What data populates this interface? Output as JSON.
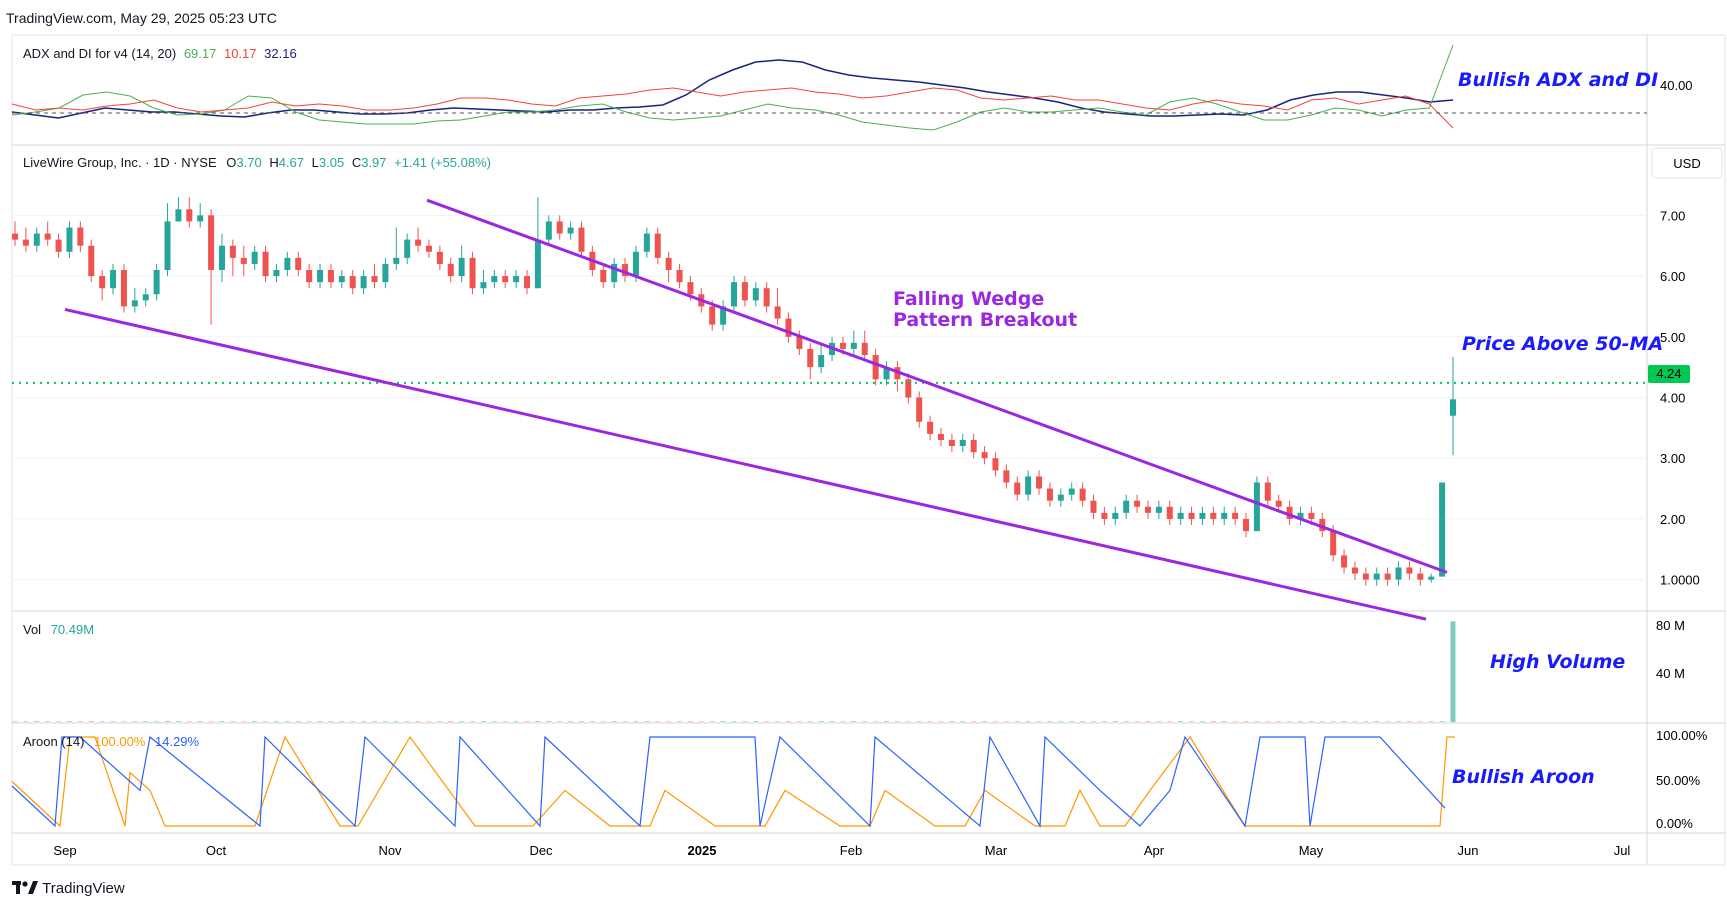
{
  "header": {
    "site": "TradingView.com, May 29, 2025 05:23 UTC",
    "footer_logo": "TradingView"
  },
  "adx_panel": {
    "title": "ADX and DI for v4 (14, 20)",
    "v1": "69.17",
    "v2": "10.17",
    "v3": "32.16",
    "axis": [
      "40.00"
    ],
    "annotation": "Bullish ADX and DI"
  },
  "price_panel": {
    "symbol": "LiveWire Group, Inc. · 1D · NYSE",
    "o_label": "O",
    "o": "3.70",
    "h_label": "H",
    "h": "4.67",
    "l_label": "L",
    "l": "3.05",
    "c_label": "C",
    "c": "3.97",
    "change": "+1.41 (+55.08%)",
    "currency": "USD",
    "last_price": "4.24",
    "axis": [
      "7.00",
      "6.00",
      "5.00",
      "4.00",
      "3.00",
      "2.00",
      "1.0000"
    ],
    "annotation_wedge_1": "Falling Wedge",
    "annotation_wedge_2": "Pattern Breakout",
    "annotation_ma": "Price Above 50-MA"
  },
  "volume_panel": {
    "label": "Vol",
    "value": "70.49M",
    "axis": [
      "80 M",
      "40 M"
    ],
    "annotation": "High Volume"
  },
  "aroon_panel": {
    "label": "Aroon (14)",
    "up": "100.00%",
    "down": "14.29%",
    "axis": [
      "100.00%",
      "50.00%",
      "0.00%"
    ],
    "annotation": "Bullish Aroon"
  },
  "time_axis": [
    "Sep",
    "Oct",
    "Nov",
    "Dec",
    "2025",
    "Feb",
    "Mar",
    "Apr",
    "May",
    "Jun",
    "Jul"
  ],
  "colors": {
    "up": "#26a69a",
    "down": "#ef5350",
    "wedge": "#9c27e0",
    "ma": "#00c853",
    "annotation": "#1a1aff",
    "adx": "#1a237e",
    "di_plus": "#4caf50",
    "di_minus": "#f44336",
    "aroon_up": "#ff9800",
    "aroon_down": "#2962ff"
  },
  "chart_data": {
    "type": "candlestick",
    "ylim": [
      0.5,
      7.5
    ],
    "candles": [
      [
        6.7,
        6.6,
        6.9,
        6.5
      ],
      [
        6.6,
        6.5,
        6.8,
        6.4
      ],
      [
        6.5,
        6.7,
        6.8,
        6.4
      ],
      [
        6.7,
        6.6,
        6.9,
        6.5
      ],
      [
        6.6,
        6.4,
        6.7,
        6.3
      ],
      [
        6.4,
        6.8,
        6.9,
        6.3
      ],
      [
        6.8,
        6.5,
        6.9,
        6.4
      ],
      [
        6.5,
        6.0,
        6.6,
        5.9
      ],
      [
        6.0,
        5.8,
        6.1,
        5.6
      ],
      [
        5.8,
        6.1,
        6.2,
        5.7
      ],
      [
        6.1,
        5.5,
        6.2,
        5.4
      ],
      [
        5.5,
        5.6,
        5.8,
        5.4
      ],
      [
        5.6,
        5.7,
        5.8,
        5.5
      ],
      [
        5.7,
        6.1,
        6.2,
        5.6
      ],
      [
        6.1,
        6.9,
        7.2,
        6.0
      ],
      [
        6.9,
        7.1,
        7.3,
        6.9
      ],
      [
        7.1,
        6.9,
        7.3,
        6.8
      ],
      [
        6.9,
        7.0,
        7.2,
        6.8
      ],
      [
        7.0,
        6.1,
        7.1,
        5.2
      ],
      [
        6.1,
        6.5,
        6.7,
        5.9
      ],
      [
        6.5,
        6.3,
        6.6,
        6.0
      ],
      [
        6.3,
        6.2,
        6.5,
        6.0
      ],
      [
        6.2,
        6.4,
        6.5,
        6.1
      ],
      [
        6.4,
        6.0,
        6.5,
        5.9
      ],
      [
        6.0,
        6.1,
        6.2,
        5.9
      ],
      [
        6.1,
        6.3,
        6.4,
        6.0
      ],
      [
        6.3,
        6.1,
        6.4,
        6.0
      ],
      [
        6.1,
        5.9,
        6.2,
        5.8
      ],
      [
        5.9,
        6.1,
        6.2,
        5.8
      ],
      [
        6.1,
        5.9,
        6.2,
        5.8
      ],
      [
        5.9,
        6.0,
        6.1,
        5.8
      ],
      [
        6.0,
        5.8,
        6.1,
        5.7
      ],
      [
        5.8,
        6.0,
        6.1,
        5.7
      ],
      [
        6.0,
        5.9,
        6.2,
        5.8
      ],
      [
        5.9,
        6.2,
        6.3,
        5.8
      ],
      [
        6.2,
        6.3,
        6.8,
        6.1
      ],
      [
        6.3,
        6.6,
        6.7,
        6.2
      ],
      [
        6.6,
        6.5,
        6.8,
        6.4
      ],
      [
        6.5,
        6.4,
        6.6,
        6.3
      ],
      [
        6.4,
        6.2,
        6.5,
        6.1
      ],
      [
        6.2,
        6.0,
        6.3,
        5.9
      ],
      [
        6.0,
        6.3,
        6.5,
        5.9
      ],
      [
        6.3,
        5.8,
        6.4,
        5.7
      ],
      [
        5.8,
        5.9,
        6.1,
        5.7
      ],
      [
        5.9,
        6.0,
        6.1,
        5.8
      ],
      [
        6.0,
        5.9,
        6.1,
        5.8
      ],
      [
        5.9,
        6.0,
        6.1,
        5.8
      ],
      [
        6.0,
        5.8,
        6.1,
        5.7
      ],
      [
        5.8,
        6.6,
        7.3,
        5.8
      ],
      [
        6.6,
        6.9,
        7.0,
        6.5
      ],
      [
        6.9,
        6.7,
        7.0,
        6.6
      ],
      [
        6.7,
        6.8,
        6.9,
        6.6
      ],
      [
        6.8,
        6.4,
        6.9,
        6.3
      ],
      [
        6.4,
        6.1,
        6.5,
        6.0
      ],
      [
        6.1,
        5.9,
        6.2,
        5.8
      ],
      [
        5.9,
        6.2,
        6.3,
        5.8
      ],
      [
        6.2,
        6.0,
        6.3,
        5.9
      ],
      [
        6.0,
        6.4,
        6.5,
        5.9
      ],
      [
        6.4,
        6.7,
        6.8,
        6.3
      ],
      [
        6.7,
        6.3,
        6.8,
        6.2
      ],
      [
        6.3,
        6.1,
        6.4,
        5.9
      ],
      [
        6.1,
        5.9,
        6.2,
        5.8
      ],
      [
        5.9,
        5.7,
        6.0,
        5.6
      ],
      [
        5.7,
        5.5,
        5.8,
        5.4
      ],
      [
        5.5,
        5.2,
        5.6,
        5.1
      ],
      [
        5.2,
        5.5,
        5.6,
        5.1
      ],
      [
        5.5,
        5.9,
        6.0,
        5.4
      ],
      [
        5.9,
        5.6,
        6.0,
        5.5
      ],
      [
        5.6,
        5.8,
        5.9,
        5.5
      ],
      [
        5.8,
        5.5,
        5.9,
        5.4
      ],
      [
        5.5,
        5.3,
        5.8,
        5.2
      ],
      [
        5.3,
        5.0,
        5.4,
        4.9
      ],
      [
        5.0,
        4.8,
        5.1,
        4.7
      ],
      [
        4.8,
        4.5,
        4.9,
        4.3
      ],
      [
        4.5,
        4.7,
        4.9,
        4.4
      ],
      [
        4.7,
        4.9,
        5.0,
        4.6
      ],
      [
        4.9,
        4.8,
        5.0,
        4.7
      ],
      [
        4.8,
        4.9,
        5.1,
        4.7
      ],
      [
        4.9,
        4.7,
        5.1,
        4.6
      ],
      [
        4.7,
        4.3,
        4.8,
        4.2
      ],
      [
        4.3,
        4.5,
        4.6,
        4.2
      ],
      [
        4.5,
        4.3,
        4.6,
        4.1
      ],
      [
        4.3,
        4.0,
        4.4,
        3.9
      ],
      [
        4.0,
        3.6,
        4.1,
        3.5
      ],
      [
        3.6,
        3.4,
        3.7,
        3.3
      ],
      [
        3.4,
        3.3,
        3.5,
        3.2
      ],
      [
        3.3,
        3.2,
        3.4,
        3.1
      ],
      [
        3.2,
        3.3,
        3.4,
        3.1
      ],
      [
        3.3,
        3.1,
        3.4,
        3.0
      ],
      [
        3.1,
        3.0,
        3.2,
        2.9
      ],
      [
        3.0,
        2.8,
        3.1,
        2.7
      ],
      [
        2.8,
        2.6,
        2.9,
        2.5
      ],
      [
        2.6,
        2.4,
        2.7,
        2.3
      ],
      [
        2.4,
        2.7,
        2.8,
        2.3
      ],
      [
        2.7,
        2.5,
        2.8,
        2.4
      ],
      [
        2.5,
        2.3,
        2.6,
        2.2
      ],
      [
        2.3,
        2.4,
        2.5,
        2.2
      ],
      [
        2.4,
        2.5,
        2.6,
        2.3
      ],
      [
        2.5,
        2.3,
        2.6,
        2.2
      ],
      [
        2.3,
        2.1,
        2.4,
        2.0
      ],
      [
        2.1,
        2.0,
        2.2,
        1.9
      ],
      [
        2.0,
        2.1,
        2.2,
        1.9
      ],
      [
        2.1,
        2.3,
        2.4,
        2.0
      ],
      [
        2.3,
        2.2,
        2.4,
        2.1
      ],
      [
        2.2,
        2.1,
        2.3,
        2.0
      ],
      [
        2.1,
        2.2,
        2.3,
        2.0
      ],
      [
        2.2,
        2.0,
        2.3,
        1.9
      ],
      [
        2.0,
        2.1,
        2.2,
        1.9
      ],
      [
        2.1,
        2.0,
        2.2,
        1.9
      ],
      [
        2.0,
        2.1,
        2.2,
        1.9
      ],
      [
        2.1,
        2.0,
        2.2,
        1.9
      ],
      [
        2.0,
        2.1,
        2.2,
        1.9
      ],
      [
        2.1,
        2.0,
        2.2,
        1.9
      ],
      [
        2.0,
        1.8,
        2.1,
        1.7
      ],
      [
        1.8,
        2.6,
        2.7,
        1.8
      ],
      [
        2.6,
        2.3,
        2.7,
        2.2
      ],
      [
        2.3,
        2.2,
        2.4,
        2.1
      ],
      [
        2.2,
        2.0,
        2.3,
        1.9
      ],
      [
        2.0,
        2.1,
        2.2,
        1.9
      ],
      [
        2.1,
        2.0,
        2.2,
        1.9
      ],
      [
        2.0,
        1.8,
        2.1,
        1.7
      ],
      [
        1.8,
        1.4,
        1.9,
        1.3
      ],
      [
        1.4,
        1.2,
        1.5,
        1.1
      ],
      [
        1.2,
        1.1,
        1.3,
        1.0
      ],
      [
        1.1,
        1.0,
        1.2,
        0.9
      ],
      [
        1.0,
        1.1,
        1.2,
        0.9
      ],
      [
        1.1,
        1.0,
        1.2,
        0.9
      ],
      [
        1.0,
        1.2,
        1.3,
        0.9
      ],
      [
        1.2,
        1.1,
        1.3,
        1.0
      ],
      [
        1.1,
        1.0,
        1.2,
        0.9
      ],
      [
        1.0,
        1.05,
        1.1,
        0.95
      ],
      [
        1.05,
        2.6,
        2.6,
        1.05
      ],
      [
        3.7,
        3.97,
        4.67,
        3.05
      ]
    ],
    "ma50": 4.24,
    "volume": [
      0.5,
      0.5,
      0.6,
      0.5,
      0.5,
      0.6,
      0.5,
      0.7,
      0.6,
      0.5,
      0.5,
      0.5,
      0.6,
      0.5,
      0.7,
      0.6,
      0.5,
      0.5,
      0.5,
      0.6,
      0.5,
      0.5,
      0.6,
      0.5,
      0.5,
      0.5,
      0.6,
      0.5,
      0.5,
      0.6,
      0.5,
      0.5,
      0.5,
      0.6,
      0.5,
      0.5,
      0.5,
      0.6,
      0.5,
      0.5,
      0.6,
      0.5,
      0.5,
      0.6,
      0.5,
      0.5,
      0.5,
      0.6,
      0.7,
      0.6,
      0.5,
      0.5,
      0.6,
      0.5,
      0.5,
      0.6,
      0.5,
      0.5,
      0.6,
      0.5,
      0.5,
      0.5,
      0.6,
      0.5,
      0.5,
      0.6,
      0.5,
      0.5,
      0.6,
      0.5,
      0.5,
      0.6,
      0.5,
      0.5,
      0.6,
      0.5,
      0.5,
      0.6,
      0.5,
      0.5,
      0.6,
      0.5,
      0.5,
      0.6,
      0.5,
      0.5,
      0.6,
      0.5,
      0.5,
      0.6,
      0.5,
      0.5,
      0.6,
      0.5,
      0.5,
      0.6,
      0.5,
      0.5,
      0.6,
      0.5,
      0.5,
      0.6,
      0.5,
      0.5,
      0.6,
      0.5,
      0.5,
      0.6,
      0.5,
      0.5,
      0.6,
      0.5,
      0.5,
      0.6,
      0.5,
      0.5,
      0.6,
      0.5,
      0.5,
      0.6,
      0.5,
      0.5,
      0.6,
      0.5,
      0.5,
      0.6,
      0.5,
      0.5,
      0.6,
      0.5,
      0.5,
      0.6,
      80.0,
      70.49
    ],
    "wedge_upper": [
      [
        0.21,
        7.25
      ],
      [
        0.815,
        1.12
      ]
    ],
    "wedge_lower": [
      [
        0.035,
        5.45
      ],
      [
        0.815,
        0.35
      ]
    ]
  }
}
